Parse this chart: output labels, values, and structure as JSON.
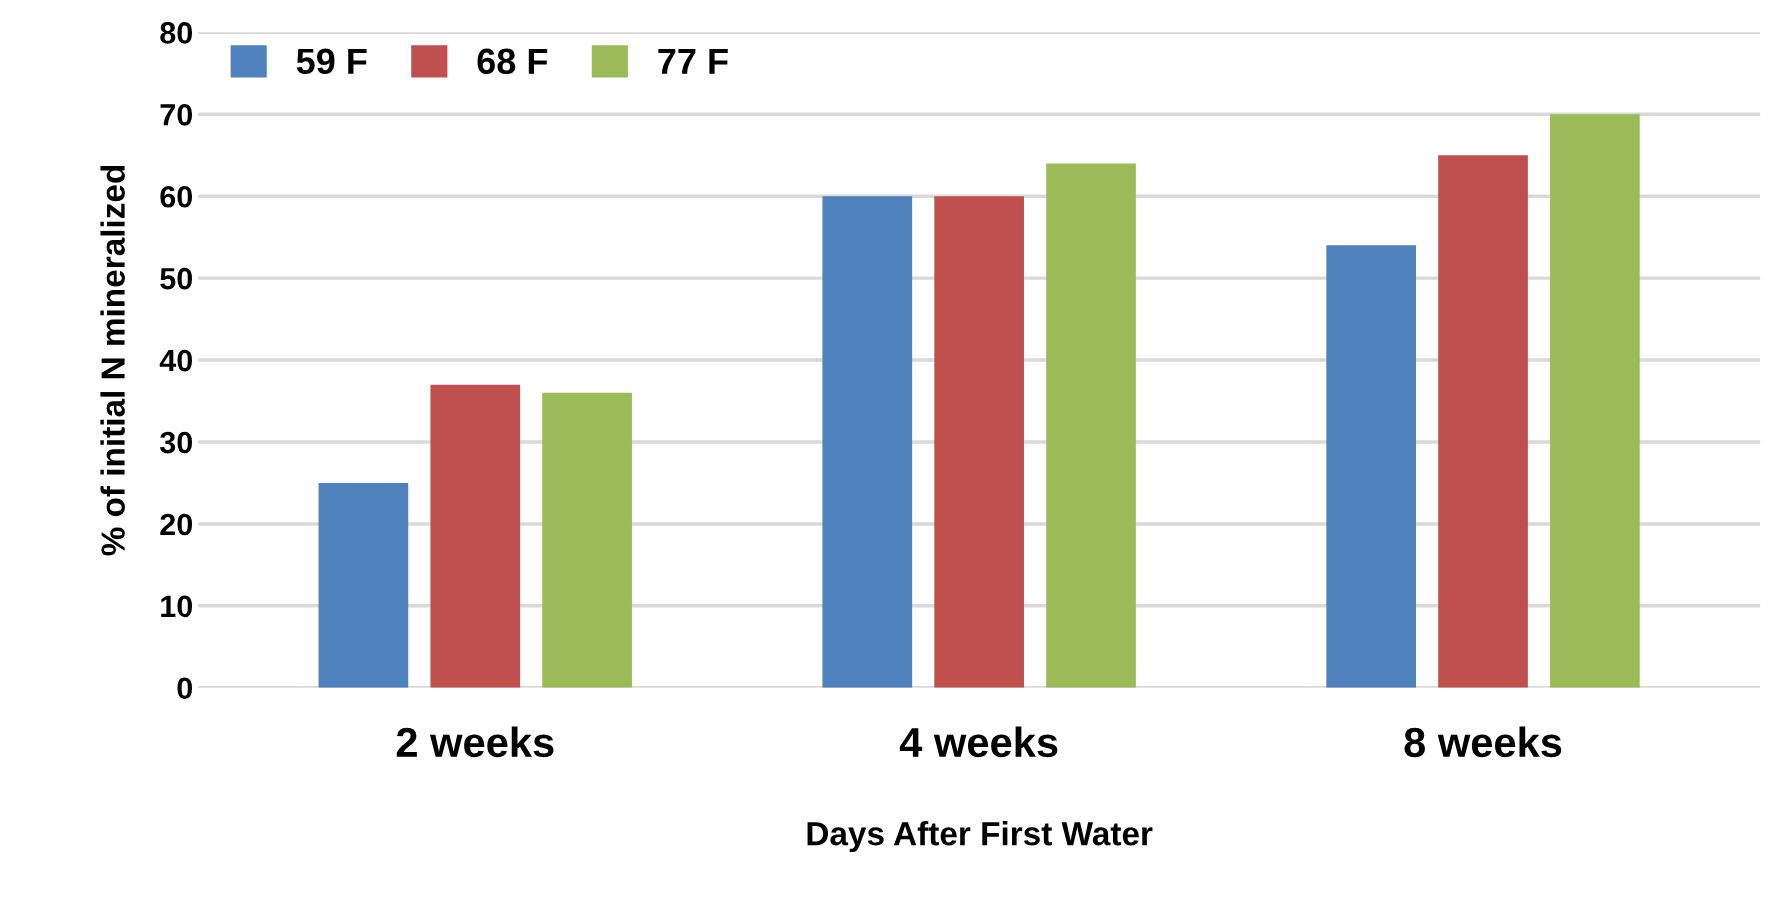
{
  "chart_data": {
    "type": "bar",
    "xlabel": "Days After First Water",
    "ylabel": "% of initial N mineralized",
    "categories": [
      "2 weeks",
      "4 weeks",
      "8 weeks"
    ],
    "series": [
      {
        "name": "59 F",
        "color": "#4f81bd",
        "values": [
          25,
          60,
          54
        ]
      },
      {
        "name": "68 F",
        "color": "#c0504d",
        "values": [
          37,
          60,
          65
        ]
      },
      {
        "name": "77 F",
        "color": "#9bbb59",
        "values": [
          36,
          64,
          70
        ]
      }
    ],
    "ylim": [
      0,
      80
    ],
    "yticks": [
      0,
      10,
      20,
      30,
      40,
      50,
      60,
      70,
      80
    ],
    "grid": "y",
    "legend": "top left"
  }
}
